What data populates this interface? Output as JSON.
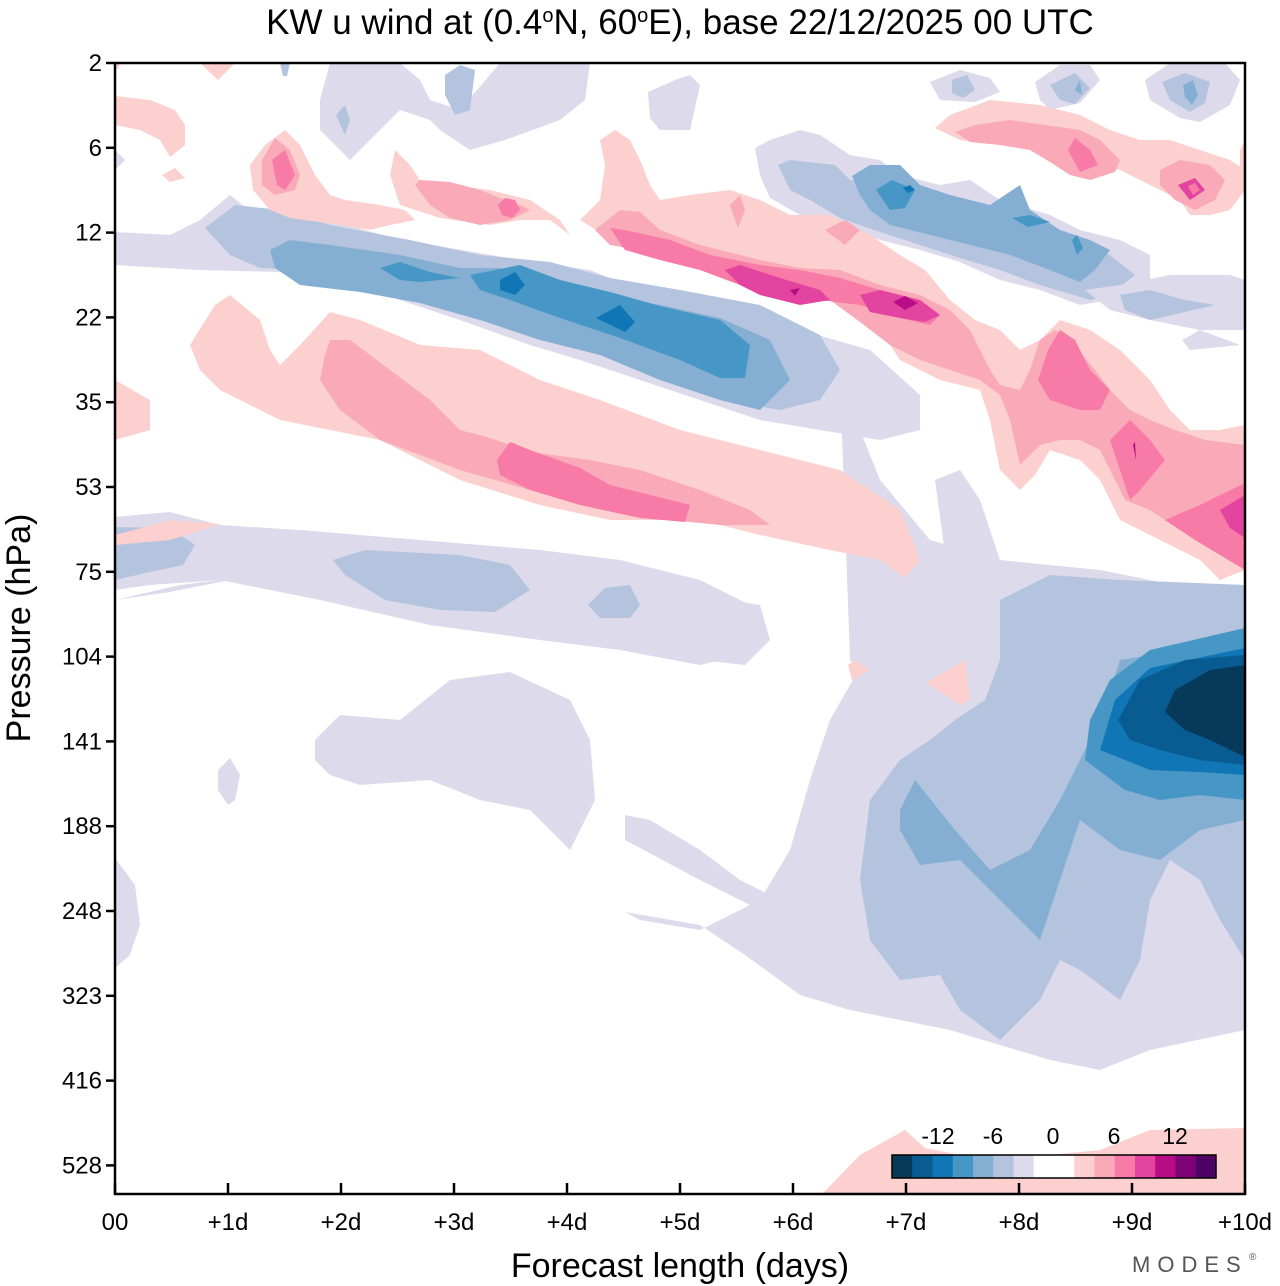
{
  "chart_data": {
    "type": "heatmap",
    "subtype": "filled-contour",
    "title": "KW u wind at (0.4°N, 60°E),  base 22/12/2025  00 UTC",
    "title_parts": {
      "prefix": "KW u wind at (0.4",
      "lat_hemi": "N, 60",
      "lon_hemi": "E),  base 22/12/2025  00 UTC",
      "degree": "o"
    },
    "xlabel": "Forecast length (days)",
    "ylabel": "Pressure (hPa)",
    "x_ticks": [
      "00",
      "+1d",
      "+2d",
      "+3d",
      "+4d",
      "+5d",
      "+6d",
      "+7d",
      "+8d",
      "+9d",
      "+10d"
    ],
    "x_range_days": [
      0,
      10
    ],
    "y_ticks": [
      "2",
      "6",
      "12",
      "22",
      "35",
      "53",
      "75",
      "104",
      "141",
      "188",
      "248",
      "323",
      "416",
      "528"
    ],
    "y_axis_direction": "pressure increasing downward",
    "colorbar": {
      "tick_labels": [
        "-12",
        "-6",
        "0",
        "6",
        "12"
      ],
      "levels": [
        -14,
        -12,
        -10,
        -8,
        -6,
        -4,
        -2,
        0,
        2,
        4,
        6,
        8,
        10,
        12,
        14
      ],
      "colors": [
        "#073a5a",
        "#085c92",
        "#1076b5",
        "#4697c6",
        "#84afd3",
        "#b4c4df",
        "#dcdaeb",
        "#ffffff",
        "#ffffff",
        "#fbd0ce",
        "#f9a9b8",
        "#f77aa7",
        "#e3449f",
        "#b80d86",
        "#7e0376",
        "#4e0264"
      ],
      "placement": "bottom-right, inside plot"
    },
    "features": [
      {
        "sign": "negative",
        "description": "descending easterly band from ~14 hPa at 0d to ~30 hPa at +6d",
        "min_value": -10
      },
      {
        "sign": "positive",
        "description": "descending westerly band from ~30 hPa at +1d to ~60 hPa at +6d",
        "min_value": 6
      },
      {
        "sign": "positive",
        "description": "westerly band ~14-22 hPa at +4d to +7d",
        "max_value": 10
      },
      {
        "sign": "negative",
        "description": "easterly band ~7-14 hPa at +6d to +9d",
        "min_value": -8
      },
      {
        "sign": "negative",
        "description": "strong easterly core ~110-150 hPa at +9.3d to +10d",
        "min_value": -14
      },
      {
        "sign": "positive",
        "description": "westerly near 500-560 hPa at +6.5d to +10d",
        "max_value": 2
      }
    ]
  },
  "branding": {
    "text": "MODES",
    "mark": "®"
  }
}
